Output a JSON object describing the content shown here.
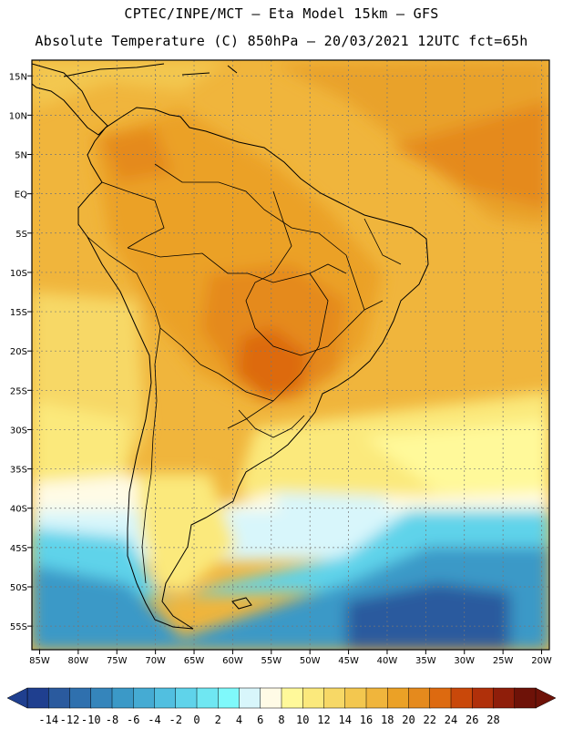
{
  "header": {
    "line1": "CPTEC/INPE/MCT —  Eta Model 15km — GFS",
    "line2": "Absolute Temperature (C) 850hPa — 20/03/2021 12UTC fct=65h"
  },
  "map": {
    "lat_labels": [
      "15N",
      "10N",
      "5N",
      "EQ",
      "5S",
      "10S",
      "15S",
      "20S",
      "25S",
      "30S",
      "35S",
      "40S",
      "45S",
      "50S",
      "55S"
    ],
    "lat_values": [
      15,
      10,
      5,
      0,
      -5,
      -10,
      -15,
      -20,
      -25,
      -30,
      -35,
      -40,
      -45,
      -50,
      -55
    ],
    "lon_labels": [
      "85W",
      "80W",
      "75W",
      "70W",
      "65W",
      "60W",
      "55W",
      "50W",
      "45W",
      "40W",
      "35W",
      "30W",
      "25W",
      "20W"
    ],
    "lon_values": [
      -85,
      -80,
      -75,
      -70,
      -65,
      -60,
      -55,
      -50,
      -45,
      -40,
      -35,
      -30,
      -25,
      -20
    ],
    "lon_range": [
      -86,
      -19
    ],
    "lat_range": [
      -58,
      17
    ]
  },
  "colorbar": {
    "labels": [
      "-14",
      "-12",
      "-10",
      "-8",
      "-6",
      "-4",
      "-2",
      "0",
      "2",
      "4",
      "6",
      "8",
      "10",
      "12",
      "14",
      "16",
      "18",
      "20",
      "22",
      "24",
      "26",
      "28"
    ],
    "colors": [
      "#1f3f8f",
      "#2a5a9e",
      "#2f70ae",
      "#3585bb",
      "#3b99c7",
      "#45abd3",
      "#51bfe0",
      "#5fd3ea",
      "#6fe7f2",
      "#7ff9fb",
      "#d8f6fb",
      "#fffbe6",
      "#fff99a",
      "#fbe97c",
      "#f7d866",
      "#f3c74f",
      "#f0b53c",
      "#eba126",
      "#e58a1d",
      "#dd6a10",
      "#c9480a",
      "#b0300a",
      "#8f1e0a",
      "#6e1208"
    ],
    "low_arrow_color": "#1f3f8f",
    "high_arrow_color": "#6e1208"
  }
}
